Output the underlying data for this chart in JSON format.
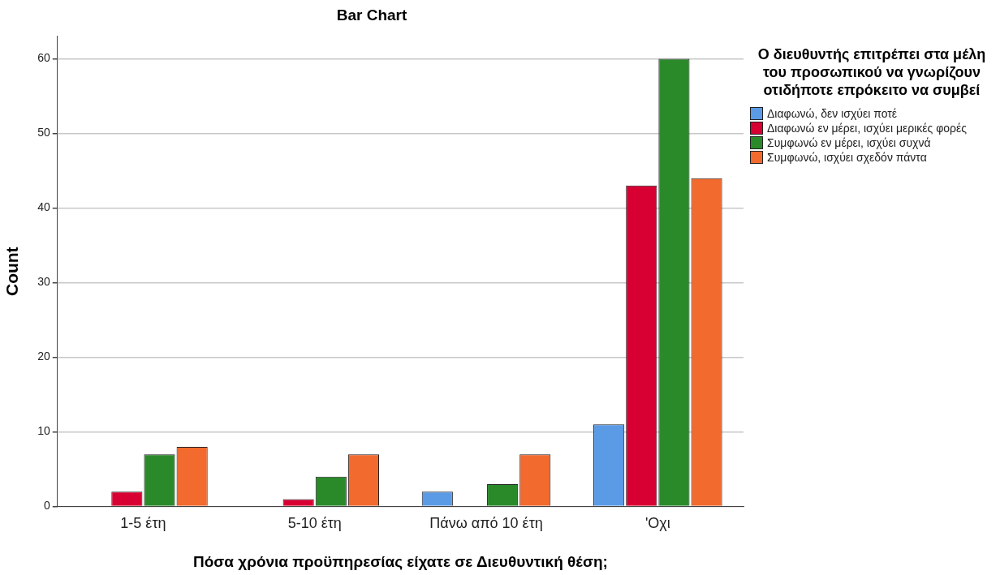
{
  "chart_data": {
    "type": "bar",
    "title": "Bar Chart",
    "xlabel": "Πόσα χρόνια προϋπηρεσίας είχατε σε Διευθυντική θέση;",
    "ylabel": "Count",
    "legend_title": "Ο διευθυντής επιτρέπει στα μέλη του προσωπικού να γνωρίζουν οτιδήποτε επρόκειτο να συμβεί",
    "categories": [
      "1-5 έτη",
      "5-10 έτη",
      "Πάνω από 10 έτη",
      "'Οχι"
    ],
    "series": [
      {
        "name": "Διαφωνώ, δεν ισχύει ποτέ",
        "color": "#5b9be6",
        "values": [
          null,
          null,
          2,
          11
        ]
      },
      {
        "name": "Διαφωνώ εν μέρει, ισχύει μερικές φορές",
        "color": "#d80032",
        "values": [
          2,
          1,
          null,
          43
        ]
      },
      {
        "name": "Συμφωνώ εν μέρει, ισχύει συχνά",
        "color": "#2a8a2a",
        "values": [
          7,
          4,
          3,
          60
        ]
      },
      {
        "name": "Συμφωνώ, ισχύει σχεδόν πάντα",
        "color": "#f26a2e",
        "values": [
          8,
          7,
          7,
          44
        ]
      }
    ],
    "ylim": [
      0,
      63
    ],
    "yticks": [
      0,
      10,
      20,
      30,
      40,
      50,
      60
    ],
    "grid": "y",
    "legend": "right"
  }
}
